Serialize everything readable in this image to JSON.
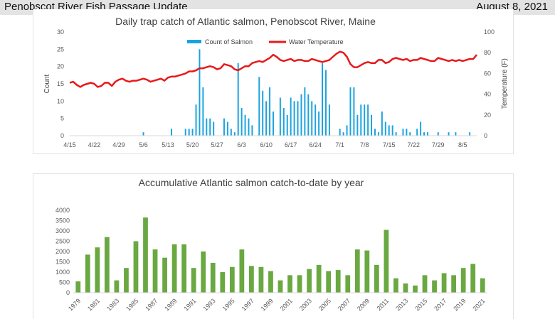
{
  "header": {
    "title": "Penobscot River Fish Passage Update",
    "date": "August 8, 2021"
  },
  "chart_data": [
    {
      "type": "bar+line",
      "title": "Daily trap catch of Atlantic salmon, Penobscot River, Maine",
      "ylabel": "Count",
      "y2label": "Temperature (F)",
      "ylim": [
        0,
        30
      ],
      "y2lim": [
        0,
        100
      ],
      "yticks": [
        "0",
        "5",
        "10",
        "15",
        "20",
        "25",
        "30"
      ],
      "y2ticks": [
        "0",
        "20",
        "40",
        "60",
        "80",
        "100"
      ],
      "xlim": [
        0,
        116
      ],
      "xtick_labels": [
        "4/15",
        "4/22",
        "4/29",
        "5/6",
        "5/13",
        "5/20",
        "5/27",
        "6/3",
        "6/10",
        "6/17",
        "6/24",
        "7/1",
        "7/8",
        "7/15",
        "7/22",
        "7/29",
        "8/5"
      ],
      "xtick_positions": [
        0,
        7,
        14,
        21,
        28,
        35,
        42,
        49,
        56,
        63,
        70,
        77,
        84,
        91,
        98,
        105,
        112
      ],
      "legend": {
        "bar": "Count of Salmon",
        "line": "Water Temperature",
        "position": "top"
      },
      "bar_color": "#1aa3e0",
      "line_color": "#e8191a",
      "counts": [
        0,
        0,
        0,
        0,
        0,
        0,
        0,
        0,
        0,
        0,
        0,
        0,
        0,
        0,
        0,
        0,
        0,
        0,
        0,
        0,
        0,
        1,
        0,
        0,
        0,
        0,
        0,
        0,
        0,
        2,
        0,
        0,
        0,
        2,
        2,
        2,
        9,
        25,
        14,
        5,
        5,
        4,
        0,
        0,
        5,
        4,
        2,
        1,
        21,
        8,
        6,
        5,
        3,
        0,
        17,
        13,
        10,
        14,
        7,
        0,
        11,
        8,
        6,
        11,
        10,
        10,
        12,
        14,
        12,
        10,
        9,
        7,
        21,
        19,
        9,
        0,
        0,
        2,
        1,
        3,
        14,
        14,
        6,
        9,
        9,
        9,
        6,
        2,
        1,
        7,
        4,
        3,
        3,
        1,
        0,
        2,
        2,
        1,
        0,
        2,
        4,
        1,
        1,
        0,
        0,
        1,
        0,
        0,
        1,
        0,
        1,
        0,
        0,
        0,
        1,
        0,
        0
      ],
      "temperature": [
        51,
        52,
        49,
        47,
        49,
        50,
        51,
        50,
        47,
        48,
        51,
        51,
        48,
        52,
        54,
        55,
        53,
        52,
        53,
        53,
        54,
        55,
        54,
        52,
        53,
        54,
        55,
        53,
        56,
        57,
        57,
        58,
        59,
        60,
        62,
        62,
        63,
        65,
        65,
        66,
        67,
        66,
        64,
        65,
        69,
        68,
        67,
        64,
        63,
        65,
        67,
        67,
        70,
        71,
        72,
        71,
        73,
        75,
        78,
        76,
        73,
        72,
        73,
        74,
        72,
        73,
        73,
        72,
        72,
        74,
        73,
        72,
        71,
        72,
        73,
        76,
        79,
        81,
        80,
        76,
        69,
        66,
        66,
        68,
        70,
        71,
        70,
        70,
        73,
        73,
        70,
        71,
        74,
        75,
        74,
        73,
        74,
        72,
        73,
        73,
        75,
        74,
        73,
        72,
        72,
        75,
        74,
        73,
        72,
        73,
        72,
        73,
        72,
        73,
        74,
        74,
        78
      ]
    },
    {
      "type": "bar",
      "title": "Accumulative Atlantic salmon catch-to-date by year",
      "ylim": [
        0,
        4000
      ],
      "yticks": [
        "0",
        "500",
        "1000",
        "1500",
        "2000",
        "2500",
        "3000",
        "3500",
        "4000"
      ],
      "bar_color": "#6aa842",
      "categories": [
        "1979",
        "1980",
        "1981",
        "1982",
        "1983",
        "1984",
        "1985",
        "1986",
        "1987",
        "1988",
        "1989",
        "1990",
        "1991",
        "1992",
        "1993",
        "1994",
        "1995",
        "1996",
        "1997",
        "1998",
        "1999",
        "2000",
        "2001",
        "2002",
        "2003",
        "2004",
        "2005",
        "2006",
        "2007",
        "2008",
        "2009",
        "2010",
        "2011",
        "2012",
        "2013",
        "2014",
        "2015",
        "2016",
        "2017",
        "2018",
        "2019",
        "2020",
        "2021"
      ],
      "xtick_labels": [
        "1979",
        "1981",
        "1983",
        "1985",
        "1987",
        "1989",
        "1991",
        "1993",
        "1995",
        "1997",
        "1999",
        "2001",
        "2003",
        "2005",
        "2007",
        "2009",
        "2011",
        "2013",
        "2015",
        "2017",
        "2019",
        "2021"
      ],
      "values": [
        550,
        1850,
        2200,
        2700,
        600,
        1200,
        2500,
        3650,
        2100,
        1700,
        2350,
        2350,
        1200,
        2000,
        1450,
        1000,
        1250,
        2100,
        1300,
        1250,
        1050,
        600,
        850,
        850,
        1150,
        1350,
        1050,
        1100,
        850,
        2100,
        2050,
        1350,
        3050,
        700,
        450,
        350,
        850,
        600,
        950,
        850,
        1200,
        1400,
        700
      ]
    }
  ]
}
